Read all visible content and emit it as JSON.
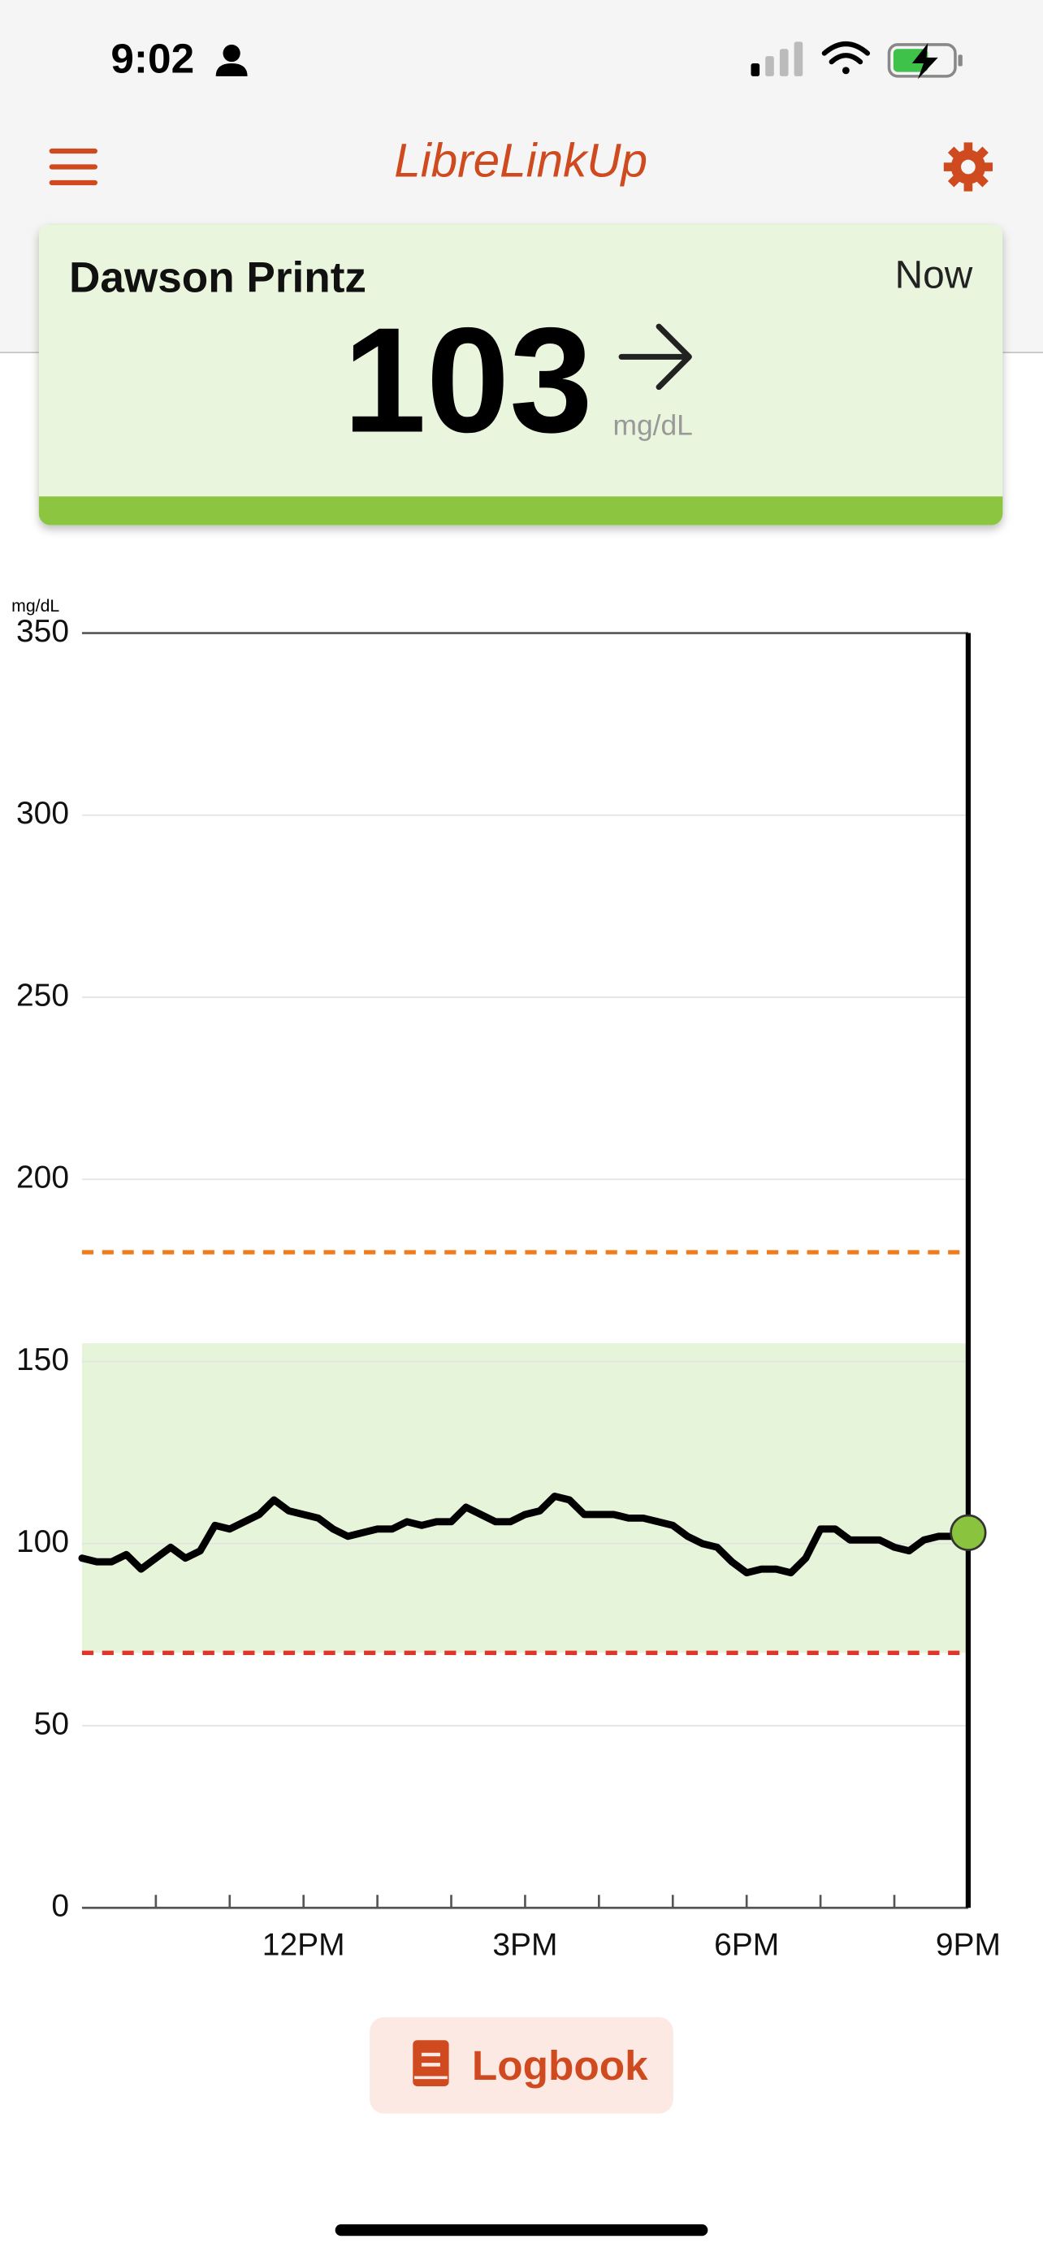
{
  "status_bar": {
    "time": "9:02"
  },
  "header": {
    "title": "LibreLinkUp"
  },
  "card": {
    "name": "Dawson Printz",
    "time": "Now",
    "value": 103,
    "unit": "mg/dL"
  },
  "chart_data": {
    "type": "line",
    "y_unit": "mg/dL",
    "x": [
      9.0,
      9.2,
      9.4,
      9.6,
      9.8,
      10.0,
      10.2,
      10.4,
      10.6,
      10.8,
      11.0,
      11.2,
      11.4,
      11.6,
      11.8,
      12.0,
      12.2,
      12.4,
      12.6,
      12.8,
      13.0,
      13.2,
      13.4,
      13.6,
      13.8,
      14.0,
      14.2,
      14.4,
      14.6,
      14.8,
      15.0,
      15.2,
      15.4,
      15.6,
      15.8,
      16.0,
      16.2,
      16.4,
      16.6,
      16.8,
      17.0,
      17.2,
      17.4,
      17.6,
      17.8,
      18.0,
      18.2,
      18.4,
      18.6,
      18.8,
      19.0,
      19.2,
      19.4,
      19.6,
      19.8,
      20.0,
      20.2,
      20.4,
      20.6,
      20.8,
      21.0
    ],
    "values": [
      96,
      95,
      95,
      97,
      93,
      96,
      99,
      96,
      98,
      105,
      104,
      106,
      108,
      112,
      109,
      108,
      107,
      104,
      102,
      103,
      104,
      104,
      106,
      105,
      106,
      106,
      110,
      108,
      106,
      106,
      108,
      109,
      113,
      112,
      108,
      108,
      108,
      107,
      107,
      106,
      105,
      102,
      100,
      99,
      95,
      92,
      93,
      93,
      92,
      96,
      104,
      104,
      101,
      101,
      101,
      99,
      98,
      101,
      102,
      102,
      103
    ],
    "color": "#000000",
    "xlim": [
      9,
      21
    ],
    "ylim": [
      0,
      350
    ],
    "yticks": [
      0,
      50,
      100,
      150,
      200,
      250,
      300,
      350
    ],
    "xticks": [
      {
        "value": 12,
        "label": "12PM"
      },
      {
        "value": 15,
        "label": "3PM"
      },
      {
        "value": 18,
        "label": "6PM"
      },
      {
        "value": 21,
        "label": "9PM"
      }
    ],
    "x_minor_ticks": [
      10,
      11,
      13,
      14,
      16,
      17,
      19,
      20
    ],
    "grid": true,
    "target_range": [
      70,
      155
    ],
    "target_color": "#e6f4d9",
    "high_threshold": 180,
    "high_color": "#f07b1a",
    "low_threshold": 70,
    "low_color": "#e0352b",
    "current_marker_color": "#8ac43f"
  },
  "button": {
    "label": "Logbook"
  }
}
